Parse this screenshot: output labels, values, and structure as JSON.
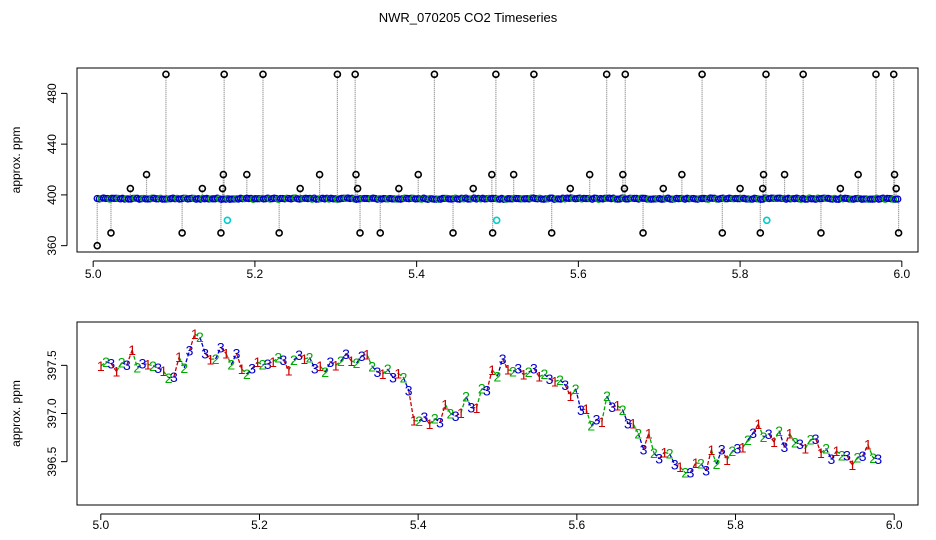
{
  "title": "NWR_070205  CO2 Timeseries",
  "colors": {
    "outlier": "#000000",
    "flag1": "#cc0000",
    "flag2": "#00aa00",
    "flag3": "#0000cc",
    "mark": "#00cccc",
    "line": "#888888"
  },
  "chart_data": [
    {
      "type": "scatter",
      "title": "",
      "xlabel": "",
      "ylabel": "approx. ppm",
      "xlim": [
        4.98,
        6.02
      ],
      "ylim": [
        355,
        500
      ],
      "xticks": [
        "5.0",
        "5.2",
        "5.4",
        "5.6",
        "5.8",
        "6.0"
      ],
      "yticks": [
        "360",
        "400",
        "440",
        "480"
      ],
      "ytick_values": [
        360,
        400,
        440,
        480
      ],
      "baseline_ppm": 397,
      "outliers": [
        {
          "x": 5.005,
          "y": 360
        },
        {
          "x": 5.022,
          "y": 370
        },
        {
          "x": 5.046,
          "y": 405
        },
        {
          "x": 5.066,
          "y": 416
        },
        {
          "x": 5.09,
          "y": 495
        },
        {
          "x": 5.11,
          "y": 370
        },
        {
          "x": 5.135,
          "y": 405
        },
        {
          "x": 5.158,
          "y": 370
        },
        {
          "x": 5.16,
          "y": 405
        },
        {
          "x": 5.161,
          "y": 416
        },
        {
          "x": 5.162,
          "y": 495
        },
        {
          "x": 5.19,
          "y": 416
        },
        {
          "x": 5.21,
          "y": 495
        },
        {
          "x": 5.23,
          "y": 370
        },
        {
          "x": 5.256,
          "y": 405
        },
        {
          "x": 5.28,
          "y": 416
        },
        {
          "x": 5.302,
          "y": 495
        },
        {
          "x": 5.324,
          "y": 495
        },
        {
          "x": 5.325,
          "y": 416
        },
        {
          "x": 5.327,
          "y": 405
        },
        {
          "x": 5.33,
          "y": 370
        },
        {
          "x": 5.355,
          "y": 370
        },
        {
          "x": 5.378,
          "y": 405
        },
        {
          "x": 5.402,
          "y": 416
        },
        {
          "x": 5.422,
          "y": 495
        },
        {
          "x": 5.445,
          "y": 370
        },
        {
          "x": 5.47,
          "y": 405
        },
        {
          "x": 5.493,
          "y": 416
        },
        {
          "x": 5.494,
          "y": 370
        },
        {
          "x": 5.498,
          "y": 495
        },
        {
          "x": 5.52,
          "y": 416
        },
        {
          "x": 5.545,
          "y": 495
        },
        {
          "x": 5.567,
          "y": 370
        },
        {
          "x": 5.59,
          "y": 405
        },
        {
          "x": 5.614,
          "y": 416
        },
        {
          "x": 5.635,
          "y": 495
        },
        {
          "x": 5.655,
          "y": 416
        },
        {
          "x": 5.657,
          "y": 405
        },
        {
          "x": 5.658,
          "y": 495
        },
        {
          "x": 5.68,
          "y": 370
        },
        {
          "x": 5.705,
          "y": 405
        },
        {
          "x": 5.728,
          "y": 416
        },
        {
          "x": 5.753,
          "y": 495
        },
        {
          "x": 5.778,
          "y": 370
        },
        {
          "x": 5.8,
          "y": 405
        },
        {
          "x": 5.825,
          "y": 370
        },
        {
          "x": 5.828,
          "y": 405
        },
        {
          "x": 5.829,
          "y": 416
        },
        {
          "x": 5.832,
          "y": 495
        },
        {
          "x": 5.855,
          "y": 416
        },
        {
          "x": 5.878,
          "y": 495
        },
        {
          "x": 5.9,
          "y": 370
        },
        {
          "x": 5.924,
          "y": 405
        },
        {
          "x": 5.946,
          "y": 416
        },
        {
          "x": 5.968,
          "y": 495
        },
        {
          "x": 5.99,
          "y": 495
        },
        {
          "x": 5.991,
          "y": 416
        },
        {
          "x": 5.993,
          "y": 405
        },
        {
          "x": 5.996,
          "y": 370
        }
      ],
      "marked": [
        {
          "x": 5.166,
          "y": 380
        },
        {
          "x": 5.499,
          "y": 380
        },
        {
          "x": 5.833,
          "y": 380
        }
      ],
      "dense_range": [
        5.005,
        5.995
      ]
    },
    {
      "type": "line",
      "title": "",
      "xlabel": "",
      "ylabel": "approx. ppm",
      "xlim": [
        4.97,
        6.03
      ],
      "ylim": [
        396.05,
        397.95
      ],
      "xticks": [
        "5.0",
        "5.2",
        "5.4",
        "5.6",
        "5.8",
        "6.0"
      ],
      "yticks": [
        "396.5",
        "397.0",
        "397.5"
      ],
      "ytick_values": [
        396.5,
        397.0,
        397.5
      ],
      "series": [
        {
          "label": "1",
          "color": "#cc0000"
        },
        {
          "label": "2",
          "color": "#00aa00"
        },
        {
          "label": "3",
          "color": "#0000cc"
        }
      ],
      "trend_x": [
        5.0,
        5.02,
        5.04,
        5.06,
        5.08,
        5.1,
        5.12,
        5.14,
        5.16,
        5.18,
        5.2,
        5.22,
        5.24,
        5.26,
        5.28,
        5.3,
        5.32,
        5.34,
        5.36,
        5.38,
        5.4,
        5.42,
        5.44,
        5.46,
        5.48,
        5.5,
        5.52,
        5.54,
        5.56,
        5.58,
        5.6,
        5.62,
        5.64,
        5.66,
        5.68,
        5.7,
        5.72,
        5.74,
        5.76,
        5.78,
        5.8,
        5.82,
        5.84,
        5.86,
        5.88,
        5.9,
        5.92,
        5.94,
        5.96,
        5.98
      ],
      "trend_y": [
        397.45,
        397.5,
        397.6,
        397.55,
        397.45,
        397.5,
        397.75,
        397.65,
        397.55,
        397.5,
        397.5,
        397.55,
        397.55,
        397.5,
        397.5,
        397.55,
        397.55,
        397.5,
        397.4,
        397.3,
        396.9,
        396.95,
        397.05,
        397.1,
        397.2,
        397.45,
        397.5,
        397.45,
        397.35,
        397.25,
        397.2,
        396.9,
        397.1,
        396.95,
        396.75,
        396.65,
        396.6,
        396.35,
        396.5,
        396.6,
        396.65,
        396.85,
        396.7,
        396.75,
        396.7,
        396.65,
        396.6,
        396.55,
        396.6,
        396.6
      ]
    }
  ]
}
